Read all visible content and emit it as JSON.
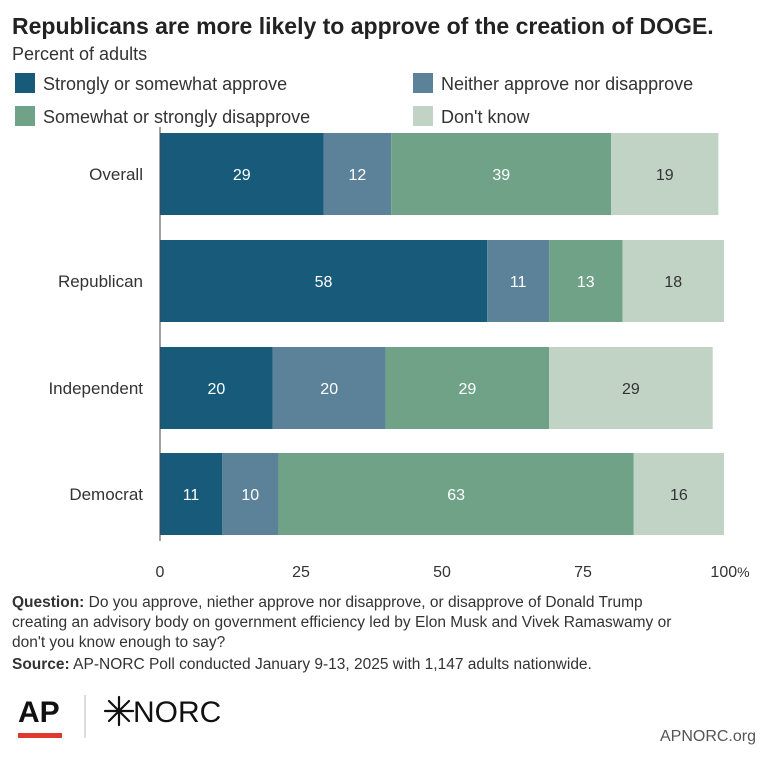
{
  "chart_data": {
    "type": "bar",
    "orientation": "horizontal",
    "stacked": true,
    "title": "Republicans are more likely to approve of the creation of DOGE.",
    "subtitle": "Percent of adults",
    "categories": [
      "Overall",
      "Republican",
      "Independent",
      "Democrat"
    ],
    "series": [
      {
        "name": "Strongly or somewhat approve",
        "color": "#175a7a",
        "values": [
          29,
          58,
          20,
          11
        ]
      },
      {
        "name": "Neither approve nor disapprove",
        "color": "#5b8299",
        "values": [
          12,
          11,
          20,
          10
        ]
      },
      {
        "name": "Somewhat or strongly disapprove",
        "color": "#6fa287",
        "values": [
          39,
          13,
          29,
          63
        ]
      },
      {
        "name": "Don't know",
        "color": "#c1d3c5",
        "values": [
          19,
          18,
          29,
          16
        ]
      }
    ],
    "xlim": [
      0,
      100
    ],
    "xticks": [
      "0",
      "25",
      "50",
      "75",
      "100"
    ],
    "x_unit": "%",
    "legend_position": "top",
    "grid": false
  },
  "footnote": {
    "question_label": "Question:",
    "question_lines": [
      " Do you approve, niether approve nor disapprove, or disapprove of Donald Trump",
      "creating an advisory body on government efficiency led by Elon Musk and Vivek Ramaswamy or",
      "don't you know enough to say?"
    ],
    "source_label": "Source:",
    "source_text": " AP-NORC Poll conducted January 9-13, 2025 with 1,147 adults nationwide."
  },
  "branding": {
    "ap_logo": "AP",
    "norc_logo": "NORC",
    "norc_mark_icon": "star-burst-icon",
    "website": "APNORC.org",
    "ap_accent_color": "#e03a2f"
  }
}
